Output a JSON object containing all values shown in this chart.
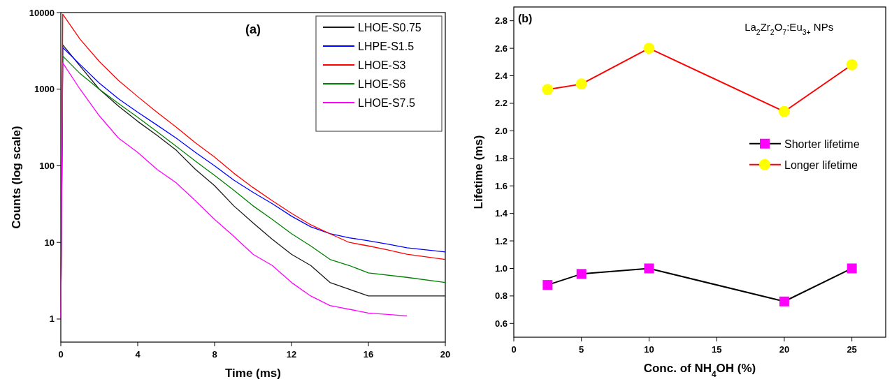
{
  "chart_data": [
    {
      "type": "line",
      "title": "(a)",
      "xlabel": "Time (ms)",
      "ylabel": "Counts (log scale)",
      "log": "y",
      "xlim": [
        0,
        20
      ],
      "xticks": [
        0,
        4,
        8,
        12,
        16,
        20
      ],
      "ylim": [
        0.5,
        10000
      ],
      "yticks": [
        1,
        10,
        100,
        1000,
        10000
      ],
      "legend": "top right",
      "marker": "none",
      "series": [
        {
          "name": "LHOE-S0.75",
          "color": "#1a1a1a",
          "x": [
            0,
            0.1,
            1,
            2,
            3,
            4,
            5,
            6,
            7,
            8,
            9,
            10,
            11,
            12,
            13,
            14,
            16,
            18,
            20
          ],
          "values": [
            1,
            3800,
            2000,
            1000,
            600,
            380,
            250,
            160,
            90,
            55,
            30,
            18,
            11,
            7,
            5,
            3,
            2,
            2,
            2
          ]
        },
        {
          "name": "LHPE-S1.5",
          "color": "#0000ff",
          "x": [
            0,
            0.1,
            1,
            2,
            3,
            4,
            5,
            6,
            7,
            8,
            9,
            10,
            11,
            12,
            13,
            14,
            15,
            16,
            17,
            18,
            19,
            20
          ],
          "values": [
            1,
            3500,
            2100,
            1200,
            750,
            500,
            340,
            230,
            150,
            100,
            65,
            45,
            32,
            22,
            16,
            13,
            11.5,
            10.5,
            9.5,
            8.5,
            8,
            7.5
          ]
        },
        {
          "name": "LHOE-S3",
          "color": "#ff0000",
          "x": [
            0,
            0.1,
            1,
            2,
            3,
            4,
            5,
            6,
            7,
            8,
            9,
            10,
            11,
            12,
            13,
            14,
            15,
            16,
            17,
            18,
            20
          ],
          "values": [
            1,
            9500,
            4500,
            2300,
            1300,
            800,
            500,
            320,
            200,
            130,
            80,
            52,
            35,
            24,
            17,
            13,
            10,
            9,
            8,
            7,
            6
          ]
        },
        {
          "name": "LHOE-S6",
          "color": "#008000",
          "x": [
            0,
            0.1,
            1,
            2,
            3,
            4,
            5,
            6,
            7,
            8,
            9,
            10,
            11,
            12,
            13,
            14,
            15,
            16,
            18,
            20
          ],
          "values": [
            1,
            2700,
            1600,
            1000,
            650,
            430,
            280,
            180,
            115,
            75,
            48,
            30,
            20,
            13,
            9,
            6,
            5,
            4,
            3.5,
            3
          ]
        },
        {
          "name": "LHOE-S7.5",
          "color": "#ff00ff",
          "x": [
            0,
            0.1,
            1,
            2,
            3,
            4,
            5,
            6,
            7,
            8,
            9,
            10,
            11,
            12,
            13,
            14,
            16,
            18
          ],
          "values": [
            1,
            2200,
            1000,
            450,
            230,
            150,
            90,
            60,
            35,
            20,
            12,
            7,
            5,
            3,
            2,
            1.5,
            1.2,
            1.1
          ]
        }
      ]
    },
    {
      "type": "line",
      "title": "(b)",
      "subtitle": "La$_{2}$Zr$_{2}$O$_{7}$:Eu$_{3+}$ NPs",
      "xlabel": "Conc. of NH$_{4}$OH (%)",
      "ylabel": "Lifetime (ms)",
      "xlim": [
        0,
        27.5
      ],
      "xticks": [
        0,
        5,
        10,
        15,
        20,
        25
      ],
      "ylim": [
        0.5,
        2.9
      ],
      "yticks": [
        0.6,
        0.8,
        {
          "value": 1,
          "label": "1.0"
        },
        1.2,
        1.4,
        1.6,
        1.8,
        {
          "value": 2,
          "label": "2.0"
        },
        2.2,
        2.4,
        2.6,
        2.8
      ],
      "legend": "right",
      "series": [
        {
          "name": "Shorter lifetime",
          "color": "#000000",
          "marker": "square",
          "colors": [
            "#ff00ff",
            "#ff00ff",
            "#ff00ff",
            "#ff00ff",
            "#ff00ff"
          ],
          "x": [
            2.5,
            5,
            10,
            20,
            25
          ],
          "values": [
            0.88,
            0.96,
            1.0,
            0.76,
            1.0
          ]
        },
        {
          "name": "Longer lifetime",
          "color": "#ff0000",
          "marker": "circle",
          "colors": [
            "#ffff00",
            "#ffff00",
            "#ffff00",
            "#ffff00",
            "#ffff00"
          ],
          "x": [
            2.5,
            5,
            10,
            20,
            25
          ],
          "values": [
            2.3,
            2.34,
            2.6,
            2.14,
            2.48
          ]
        }
      ]
    }
  ]
}
